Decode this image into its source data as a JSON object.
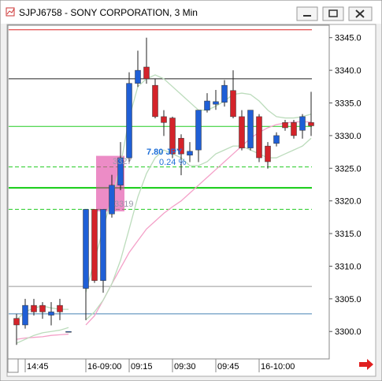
{
  "chart_data": {
    "type": "candlestick",
    "title": "SJPJ6758 - SONY CORPORATION, 3 Min",
    "categories": [
      null,
      "14:45",
      null,
      null,
      null,
      null,
      null,
      null,
      "16-09:00",
      null,
      null,
      null,
      null,
      "09:15",
      null,
      null,
      null,
      null,
      "09:30",
      null,
      null,
      null,
      null,
      "09:45",
      null,
      null,
      null,
      null,
      "16-10:00",
      null,
      null,
      null,
      null,
      null,
      null
    ],
    "open": [
      3302,
      3301,
      3304,
      3304,
      3302.5,
      3304,
      3300,
      null,
      3306.6,
      3318.7,
      3307.8,
      3318,
      3322.4,
      3326.6,
      3338,
      3340.5,
      3337.7,
      3332.9,
      3332.7,
      3329.6,
      3327,
      3327.8,
      3333.9,
      3334.8,
      3335.1,
      3336.9,
      3332.9,
      3328.1,
      3332.9,
      3328.4,
      3328.8,
      3332,
      3332,
      3330.8,
      3332
    ],
    "high": [
      3302.7,
      3305,
      3305,
      3304.5,
      3304.5,
      3305,
      3300,
      null,
      3318.7,
      3318.7,
      3318.7,
      3324,
      3329,
      3339.7,
      3343,
      3345,
      3338.7,
      3333.9,
      3332.9,
      3330.2,
      3329,
      3333.9,
      3336.5,
      3337,
      3338.5,
      3340,
      3333.9,
      3333.9,
      3333.3,
      3329,
      3330.5,
      3332.4,
      3332.4,
      3333.3,
      3336.7
    ],
    "low": [
      3298,
      3300.5,
      3302.5,
      3302,
      3301,
      3301.8,
      3300,
      null,
      3301.8,
      3307.5,
      3306,
      3317.5,
      3321.7,
      3326,
      3337.5,
      3338,
      3332.7,
      3330,
      3326.6,
      3324,
      3326,
      3326,
      3333.6,
      3334,
      3334.5,
      3332.7,
      3327.8,
      3327.8,
      3326,
      3325,
      3328.4,
      3330.8,
      3329.6,
      3329.6,
      3330
    ],
    "close": [
      3301,
      3304,
      3303,
      3303,
      3303,
      3303,
      3300,
      null,
      3318.7,
      3307.8,
      3318.7,
      3322.4,
      3326.6,
      3338,
      3340,
      3338.7,
      3332.9,
      3332,
      3327.2,
      3327.2,
      3327.6,
      3333.9,
      3335.3,
      3335.2,
      3337.7,
      3332.9,
      3328.1,
      3333.9,
      3326.6,
      3326,
      3330,
      3331.2,
      3330,
      3332.9,
      3331.5
    ],
    "up_color": "#1f5fd6",
    "down_color": "#d4232a",
    "lines": [
      {
        "color": "#f4a0c8",
        "values": [
          3298.8,
          3299,
          3299.1,
          3299.2,
          3299.4,
          3299.5,
          3299.6,
          null,
          3301,
          3302.4,
          3304.8,
          3307.3,
          3309.7,
          3312.1,
          3313.9,
          3315.7,
          3316.9,
          3318.1,
          3319.1,
          3320,
          3321.2,
          3322.4,
          3323.6,
          3324.8,
          3326,
          3327.2,
          3328.4,
          3329.6,
          3330.5,
          3331.2,
          3331.7,
          3331.9,
          3332.1,
          3332.1,
          3332.1
        ]
      },
      {
        "color": "#bcdcbc",
        "values": [
          3301.8,
          3303,
          3303.6,
          3303.9,
          3303.6,
          3303.4,
          3303.4,
          null,
          3306,
          3310.9,
          3315.7,
          3320.6,
          3325.4,
          3332.7,
          3337.5,
          3338.7,
          3339.3,
          3338.7,
          3337.5,
          3336.3,
          3335.1,
          3333.9,
          3333.9,
          3334.5,
          3335.3,
          3336.3,
          3336.5,
          3336.3,
          3335.3,
          3333.9,
          3332.9,
          3332.7,
          3332.7,
          3332.9,
          3333.3
        ]
      },
      {
        "color": "#bcdcbc",
        "values": [
          3298.2,
          3298.8,
          3299.4,
          3299.8,
          3300,
          3300.2,
          3300.6,
          null,
          3301.8,
          3303,
          3304.8,
          3307.3,
          3310.9,
          3315.7,
          3320.6,
          3324.2,
          3326.6,
          3327.8,
          3327.2,
          3326.6,
          3325.4,
          3325.4,
          3326,
          3327.2,
          3327.8,
          3328.4,
          3328.4,
          3327.8,
          3327.2,
          3326.6,
          3326.6,
          3327.2,
          3327.8,
          3328.4,
          3329.6
        ]
      }
    ],
    "levels": [
      {
        "value": 3346.2,
        "color": "#d22",
        "dash": false,
        "width": 1
      },
      {
        "value": 3338.7,
        "color": "#222",
        "dash": false,
        "width": 1
      },
      {
        "value": 3331.4,
        "color": "#2c2",
        "dash": false,
        "width": 1
      },
      {
        "value": 3325.2,
        "color": "#2c2",
        "dash": true,
        "width": 1
      },
      {
        "value": 3322,
        "color": "#1c1",
        "dash": false,
        "width": 2
      },
      {
        "value": 3318.7,
        "color": "#2c2",
        "dash": true,
        "width": 1
      },
      {
        "value": 3306.9,
        "color": "#999",
        "dash": false,
        "width": 1
      },
      {
        "value": 3302.7,
        "color": "#4682b4",
        "dash": false,
        "width": 1
      }
    ],
    "box": [
      3318.4,
      3326.9
    ],
    "annotations": [
      "3327",
      "3319",
      "7.80 JPY",
      "0.24 %"
    ],
    "ylim": [
      3295.8,
      3346.9
    ],
    "yticks": [
      {
        "value": 3300,
        "label": "3300.0"
      },
      {
        "value": 3305,
        "label": "3305.0"
      },
      {
        "value": 3310,
        "label": "3310.0"
      },
      {
        "value": 3315,
        "label": "3315.0"
      },
      {
        "value": 3320,
        "label": "3320.0"
      },
      {
        "value": 3325,
        "label": "3325.0"
      },
      {
        "value": 3330,
        "label": "3330.0"
      },
      {
        "value": 3335,
        "label": "3335.0"
      },
      {
        "value": 3340,
        "label": "3340.0"
      },
      {
        "value": 3345,
        "label": "3345.0"
      }
    ]
  }
}
